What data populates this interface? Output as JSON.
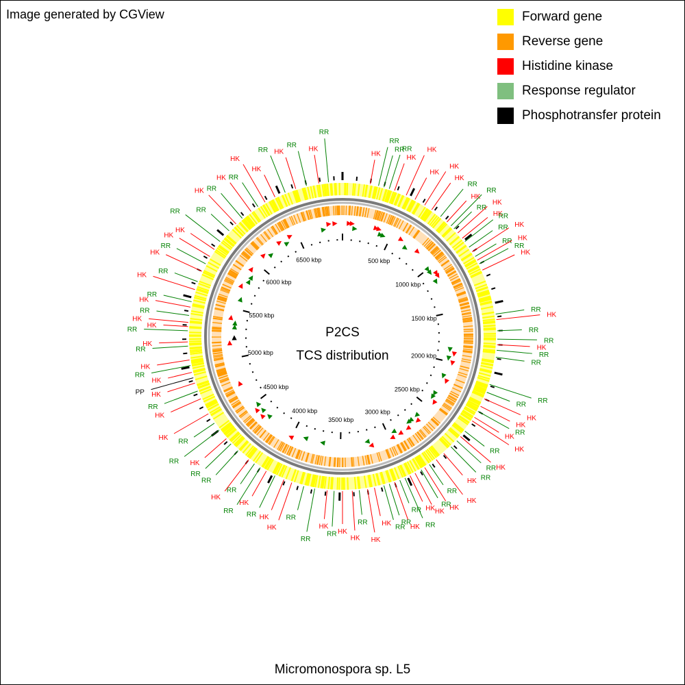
{
  "corner_note": "Image generated by CGView",
  "legend": [
    {
      "label": "Forward gene",
      "color": "#ffff00"
    },
    {
      "label": "Reverse gene",
      "color": "#ff9900"
    },
    {
      "label": "Histidine kinase",
      "color": "#ff0000"
    },
    {
      "label": "Response regulator",
      "color": "#7fbf7f"
    },
    {
      "label": "Phosphotransfer protein",
      "color": "#000000"
    }
  ],
  "center_title": [
    "P2CS",
    "TCS distribution"
  ],
  "footer_title": "Micromonospora sp. L5",
  "genome": {
    "total_kbp": 6960,
    "tick_labels": [
      "500 kbp",
      "1000 kbp",
      "1500 kbp",
      "2000 kbp",
      "2500 kbp",
      "3000 kbp",
      "3500 kbp",
      "4000 kbp",
      "4500 kbp",
      "5000 kbp",
      "5500 kbp",
      "6000 kbp",
      "6500 kbp"
    ],
    "tick_values_kbp": [
      500,
      1000,
      1500,
      2000,
      2500,
      3000,
      3500,
      4000,
      4500,
      5000,
      5500,
      6000,
      6500
    ]
  },
  "colors": {
    "forward": "#ffff00",
    "reverse": "#ff9900",
    "hk": "#ff0000",
    "rr": "#008000",
    "pp": "#000000",
    "backbone": "#808080"
  },
  "features": [
    {
      "label": "HK",
      "kbp": 200
    },
    {
      "label": "RR",
      "kbp": 260
    },
    {
      "label": "RR",
      "kbp": 300
    },
    {
      "label": "RR",
      "kbp": 340
    },
    {
      "label": "HK",
      "kbp": 380
    },
    {
      "label": "HK",
      "kbp": 470
    },
    {
      "label": "HK",
      "kbp": 540
    },
    {
      "label": "HK",
      "kbp": 620
    },
    {
      "label": "HK",
      "kbp": 680
    },
    {
      "label": "RR",
      "kbp": 760
    },
    {
      "label": "HK",
      "kbp": 820
    },
    {
      "label": "RR",
      "kbp": 860
    },
    {
      "label": "RR",
      "kbp": 890
    },
    {
      "label": "HK",
      "kbp": 930
    },
    {
      "label": "HK",
      "kbp": 980
    },
    {
      "label": "RR",
      "kbp": 1010
    },
    {
      "label": "RR",
      "kbp": 1060
    },
    {
      "label": "HK",
      "kbp": 1100
    },
    {
      "label": "RR",
      "kbp": 1140
    },
    {
      "label": "HK",
      "kbp": 1170
    },
    {
      "label": "RR",
      "kbp": 1200
    },
    {
      "label": "HK",
      "kbp": 1250
    },
    {
      "label": "RR",
      "kbp": 1580
    },
    {
      "label": "HK",
      "kbp": 1620
    },
    {
      "label": "RR",
      "kbp": 1700
    },
    {
      "label": "RR",
      "kbp": 1760
    },
    {
      "label": "HK",
      "kbp": 1800
    },
    {
      "label": "RR",
      "kbp": 1840
    },
    {
      "label": "RR",
      "kbp": 1890
    },
    {
      "label": "RR",
      "kbp": 2090
    },
    {
      "label": "RR",
      "kbp": 2150
    },
    {
      "label": "HK",
      "kbp": 2200
    },
    {
      "label": "HK",
      "kbp": 2260
    },
    {
      "label": "RR",
      "kbp": 2300
    },
    {
      "label": "HK",
      "kbp": 2350
    },
    {
      "label": "HK",
      "kbp": 2380
    },
    {
      "label": "RR",
      "kbp": 2470
    },
    {
      "label": "HK",
      "kbp": 2520
    },
    {
      "label": "RR",
      "kbp": 2560
    },
    {
      "label": "RR",
      "kbp": 2620
    },
    {
      "label": "HK",
      "kbp": 2690
    },
    {
      "label": "HK",
      "kbp": 2760
    },
    {
      "label": "RR",
      "kbp": 2820
    },
    {
      "label": "HK",
      "kbp": 2860
    },
    {
      "label": "RR",
      "kbp": 2890
    },
    {
      "label": "HK",
      "kbp": 2940
    },
    {
      "label": "HK",
      "kbp": 2980
    },
    {
      "label": "RR",
      "kbp": 3020
    },
    {
      "label": "RR",
      "kbp": 3060
    },
    {
      "label": "HK",
      "kbp": 3100
    },
    {
      "label": "RR",
      "kbp": 3140
    },
    {
      "label": "RR",
      "kbp": 3180
    },
    {
      "label": "HK",
      "kbp": 3250
    },
    {
      "label": "HK",
      "kbp": 3300
    },
    {
      "label": "RR",
      "kbp": 3360
    },
    {
      "label": "HK",
      "kbp": 3410
    },
    {
      "label": "HK",
      "kbp": 3480
    },
    {
      "label": "RR",
      "kbp": 3540
    },
    {
      "label": "HK",
      "kbp": 3590
    },
    {
      "label": "RR",
      "kbp": 3680
    },
    {
      "label": "RR",
      "kbp": 3760
    },
    {
      "label": "HK",
      "kbp": 3850
    },
    {
      "label": "HK",
      "kbp": 3910
    },
    {
      "label": "RR",
      "kbp": 3980
    },
    {
      "label": "HK",
      "kbp": 4050
    },
    {
      "label": "RR",
      "kbp": 4100
    },
    {
      "label": "RR",
      "kbp": 4150
    },
    {
      "label": "HK",
      "kbp": 4200
    },
    {
      "label": "RR",
      "kbp": 4300
    },
    {
      "label": "RR",
      "kbp": 4370
    },
    {
      "label": "HK",
      "kbp": 4420
    },
    {
      "label": "RR",
      "kbp": 4500
    },
    {
      "label": "RR",
      "kbp": 4560
    },
    {
      "label": "HK",
      "kbp": 4640
    },
    {
      "label": "HK",
      "kbp": 4760
    },
    {
      "label": "RR",
      "kbp": 4820
    },
    {
      "label": "HK",
      "kbp": 4880
    },
    {
      "label": "PP",
      "kbp": 4920
    },
    {
      "label": "HK",
      "kbp": 4960
    },
    {
      "label": "RR",
      "kbp": 5010
    },
    {
      "label": "HK",
      "kbp": 5050
    },
    {
      "label": "RR",
      "kbp": 5150
    },
    {
      "label": "HK",
      "kbp": 5180
    },
    {
      "label": "RR",
      "kbp": 5260
    },
    {
      "label": "HK",
      "kbp": 5290
    },
    {
      "label": "HK",
      "kbp": 5320
    },
    {
      "label": "RR",
      "kbp": 5370
    },
    {
      "label": "HK",
      "kbp": 5430
    },
    {
      "label": "RR",
      "kbp": 5470
    },
    {
      "label": "HK",
      "kbp": 5560
    },
    {
      "label": "RR",
      "kbp": 5620
    },
    {
      "label": "HK",
      "kbp": 5700
    },
    {
      "label": "RR",
      "kbp": 5760
    },
    {
      "label": "HK",
      "kbp": 5820
    },
    {
      "label": "HK",
      "kbp": 5880
    },
    {
      "label": "RR",
      "kbp": 5950
    },
    {
      "label": "RR",
      "kbp": 6050
    },
    {
      "label": "HK",
      "kbp": 6120
    },
    {
      "label": "RR",
      "kbp": 6180
    },
    {
      "label": "HK",
      "kbp": 6260
    },
    {
      "label": "RR",
      "kbp": 6320
    },
    {
      "label": "HK",
      "kbp": 6380
    },
    {
      "label": "HK",
      "kbp": 6460
    },
    {
      "label": "RR",
      "kbp": 6540
    },
    {
      "label": "HK",
      "kbp": 6620
    },
    {
      "label": "RR",
      "kbp": 6700
    },
    {
      "label": "HK",
      "kbp": 6790
    },
    {
      "label": "RR",
      "kbp": 6860
    }
  ],
  "inner_markers": [
    {
      "type": "HK",
      "kbp": 60
    },
    {
      "type": "HK",
      "kbp": 90
    },
    {
      "type": "RR",
      "kbp": 120
    },
    {
      "type": "HK",
      "kbp": 330
    },
    {
      "type": "HK",
      "kbp": 360
    },
    {
      "type": "RR",
      "kbp": 390
    },
    {
      "type": "RR",
      "kbp": 420
    },
    {
      "type": "HK",
      "kbp": 600
    },
    {
      "type": "RR",
      "kbp": 680
    },
    {
      "type": "HK",
      "kbp": 800
    },
    {
      "type": "RR",
      "kbp": 1000
    },
    {
      "type": "RR",
      "kbp": 1040
    },
    {
      "type": "HK",
      "kbp": 1080
    },
    {
      "type": "HK",
      "kbp": 1110
    },
    {
      "type": "RR",
      "kbp": 1150
    },
    {
      "type": "RR",
      "kbp": 1870
    },
    {
      "type": "HK",
      "kbp": 1910
    },
    {
      "type": "RR",
      "kbp": 1960
    },
    {
      "type": "HK",
      "kbp": 2000
    },
    {
      "type": "RR",
      "kbp": 2150
    },
    {
      "type": "HK",
      "kbp": 2190
    },
    {
      "type": "RR",
      "kbp": 2350
    },
    {
      "type": "RR",
      "kbp": 2390
    },
    {
      "type": "HK",
      "kbp": 2430
    },
    {
      "type": "RR",
      "kbp": 2640
    },
    {
      "type": "HK",
      "kbp": 2670
    },
    {
      "type": "RR",
      "kbp": 2720
    },
    {
      "type": "RR",
      "kbp": 2750
    },
    {
      "type": "HK",
      "kbp": 2790
    },
    {
      "type": "HK",
      "kbp": 2880
    },
    {
      "type": "RR",
      "kbp": 2930
    },
    {
      "type": "HK",
      "kbp": 2970
    },
    {
      "type": "HK",
      "kbp": 3190
    },
    {
      "type": "RR",
      "kbp": 3220
    },
    {
      "type": "RR",
      "kbp": 3680
    },
    {
      "type": "RR",
      "kbp": 3860
    },
    {
      "type": "HK",
      "kbp": 4000
    },
    {
      "type": "RR",
      "kbp": 4300
    },
    {
      "type": "HK",
      "kbp": 4350
    },
    {
      "type": "RR",
      "kbp": 4390
    },
    {
      "type": "HK",
      "kbp": 4430
    },
    {
      "type": "RR",
      "kbp": 4470
    },
    {
      "type": "HK",
      "kbp": 4740
    },
    {
      "type": "HK",
      "kbp": 5150
    },
    {
      "type": "PP",
      "kbp": 5200
    },
    {
      "type": "RR",
      "kbp": 5310
    },
    {
      "type": "RR",
      "kbp": 5350
    },
    {
      "type": "HK",
      "kbp": 5400
    },
    {
      "type": "RR",
      "kbp": 5600
    },
    {
      "type": "HK",
      "kbp": 5730
    },
    {
      "type": "RR",
      "kbp": 5800
    },
    {
      "type": "RR",
      "kbp": 5850
    },
    {
      "type": "HK",
      "kbp": 5920
    },
    {
      "type": "HK",
      "kbp": 6100
    },
    {
      "type": "RR",
      "kbp": 6160
    },
    {
      "type": "HK",
      "kbp": 6300
    },
    {
      "type": "RR",
      "kbp": 6360
    },
    {
      "type": "HK",
      "kbp": 6420
    },
    {
      "type": "RR",
      "kbp": 6760
    },
    {
      "type": "HK",
      "kbp": 6820
    },
    {
      "type": "HK",
      "kbp": 6880
    }
  ]
}
